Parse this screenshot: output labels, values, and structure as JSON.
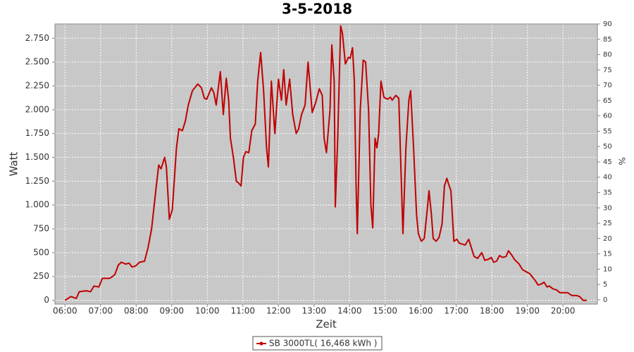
{
  "chart_data": {
    "type": "line",
    "title": "3-5-2018",
    "xlabel": "Zeit",
    "ylabel": "Watt",
    "y2label": "%",
    "x": [
      "06:00",
      "06:10",
      "06:19",
      "06:24",
      "06:36",
      "06:43",
      "06:49",
      "06:57",
      "07:03",
      "07:15",
      "07:18",
      "07:24",
      "07:30",
      "07:35",
      "07:42",
      "07:48",
      "07:53",
      "07:59",
      "08:06",
      "08:14",
      "08:20",
      "08:26",
      "08:34",
      "08:38",
      "08:42",
      "08:48",
      "08:51",
      "08:56",
      "09:01",
      "09:08",
      "09:12",
      "09:18",
      "09:23",
      "09:28",
      "09:35",
      "09:44",
      "09:50",
      "09:55",
      "09:59",
      "10:07",
      "10:11",
      "10:15",
      "10:22",
      "10:27",
      "10:32",
      "10:36",
      "10:39",
      "10:44",
      "10:49",
      "10:53",
      "10:57",
      "11:01",
      "11:05",
      "11:10",
      "11:15",
      "11:21",
      "11:25",
      "11:30",
      "11:35",
      "11:40",
      "11:43",
      "11:48",
      "11:54",
      "12:00",
      "12:05",
      "12:09",
      "12:13",
      "12:19",
      "12:24",
      "12:30",
      "12:34",
      "12:39",
      "12:45",
      "12:50",
      "12:57",
      "13:03",
      "13:09",
      "13:14",
      "13:17",
      "13:21",
      "13:27",
      "13:30",
      "13:34",
      "13:36",
      "13:40",
      "13:45",
      "13:48",
      "13:53",
      "13:58",
      "14:01",
      "14:05",
      "14:08",
      "14:11",
      "14:13",
      "14:18",
      "14:23",
      "14:27",
      "14:32",
      "14:36",
      "14:39",
      "14:43",
      "14:46",
      "14:49",
      "14:53",
      "14:58",
      "15:04",
      "15:09",
      "15:12",
      "15:18",
      "15:23",
      "15:27",
      "15:30",
      "15:35",
      "15:40",
      "15:43",
      "15:48",
      "15:53",
      "15:56",
      "16:01",
      "16:06",
      "16:11",
      "16:14",
      "16:18",
      "16:21",
      "16:26",
      "16:31",
      "16:36",
      "16:40",
      "16:44",
      "16:47",
      "16:51",
      "16:56",
      "17:01",
      "17:05",
      "17:10",
      "17:15",
      "17:21",
      "17:24",
      "17:30",
      "17:36",
      "17:43",
      "17:48",
      "17:54",
      "17:59",
      "18:03",
      "18:08",
      "18:13",
      "18:18",
      "18:24",
      "18:28",
      "18:33",
      "18:38",
      "18:46",
      "18:52",
      "18:58",
      "19:04",
      "19:09",
      "19:14",
      "19:18",
      "19:23",
      "19:28",
      "19:33",
      "19:37",
      "19:43",
      "19:49",
      "19:55",
      "20:01",
      "20:08",
      "20:15",
      "20:23",
      "20:28",
      "20:34",
      "20:40"
    ],
    "series": [
      {
        "name": "SB 3000TL( 16,468 kWh )",
        "color": "#c00000",
        "values": [
          0,
          40,
          20,
          90,
          100,
          90,
          150,
          140,
          230,
          230,
          240,
          270,
          370,
          400,
          380,
          390,
          350,
          360,
          400,
          410,
          550,
          750,
          1200,
          1420,
          1380,
          1500,
          1400,
          850,
          950,
          1600,
          1800,
          1780,
          1880,
          2050,
          2200,
          2270,
          2230,
          2120,
          2110,
          2230,
          2180,
          2050,
          2400,
          1950,
          2330,
          2100,
          1700,
          1500,
          1250,
          1230,
          1200,
          1500,
          1560,
          1550,
          1780,
          1850,
          2300,
          2600,
          2200,
          1600,
          1400,
          2300,
          1750,
          2320,
          2100,
          2420,
          2050,
          2320,
          1950,
          1750,
          1800,
          1950,
          2050,
          2500,
          1970,
          2080,
          2220,
          2150,
          1700,
          1550,
          2000,
          2680,
          2300,
          980,
          1700,
          2880,
          2800,
          2480,
          2550,
          2540,
          2650,
          2300,
          1200,
          700,
          2000,
          2520,
          2500,
          2000,
          1000,
          760,
          1700,
          1600,
          1750,
          2300,
          2130,
          2110,
          2130,
          2100,
          2150,
          2120,
          1300,
          700,
          1600,
          2100,
          2200,
          1600,
          900,
          700,
          620,
          650,
          950,
          1150,
          900,
          650,
          620,
          660,
          800,
          1200,
          1280,
          1220,
          1150,
          620,
          640,
          600,
          590,
          580,
          640,
          580,
          460,
          440,
          500,
          420,
          430,
          450,
          400,
          410,
          470,
          450,
          460,
          520,
          480,
          430,
          380,
          320,
          300,
          280,
          240,
          200,
          160,
          170,
          190,
          140,
          150,
          120,
          110,
          80,
          80,
          80,
          50,
          50,
          40,
          0,
          0
        ]
      }
    ],
    "xlim": [
      "05:43",
      "20:58"
    ],
    "xticks": [
      "06:00",
      "07:00",
      "08:00",
      "09:00",
      "10:00",
      "11:00",
      "12:00",
      "13:00",
      "14:00",
      "15:00",
      "16:00",
      "17:00",
      "18:00",
      "19:00",
      "20:00"
    ],
    "ylim": [
      -40,
      2900
    ],
    "yticks": [
      0,
      250,
      500,
      750,
      {
        "value": 1000,
        "label": "1.000"
      },
      {
        "value": 1250,
        "label": "1.250"
      },
      {
        "value": 1500,
        "label": "1.500"
      },
      {
        "value": 1750,
        "label": "1.750"
      },
      {
        "value": 2000,
        "label": "2.000"
      },
      {
        "value": 2250,
        "label": "2.250"
      },
      {
        "value": 2500,
        "label": "2.500"
      },
      {
        "value": 2750,
        "label": "2.750"
      }
    ],
    "y2lim": [
      -1.4,
      90
    ],
    "y2ticks": [
      0,
      5,
      10,
      15,
      20,
      25,
      30,
      35,
      40,
      45,
      50,
      55,
      60,
      65,
      70,
      75,
      80,
      85,
      90
    ],
    "grid": true,
    "legend": "bottom"
  }
}
